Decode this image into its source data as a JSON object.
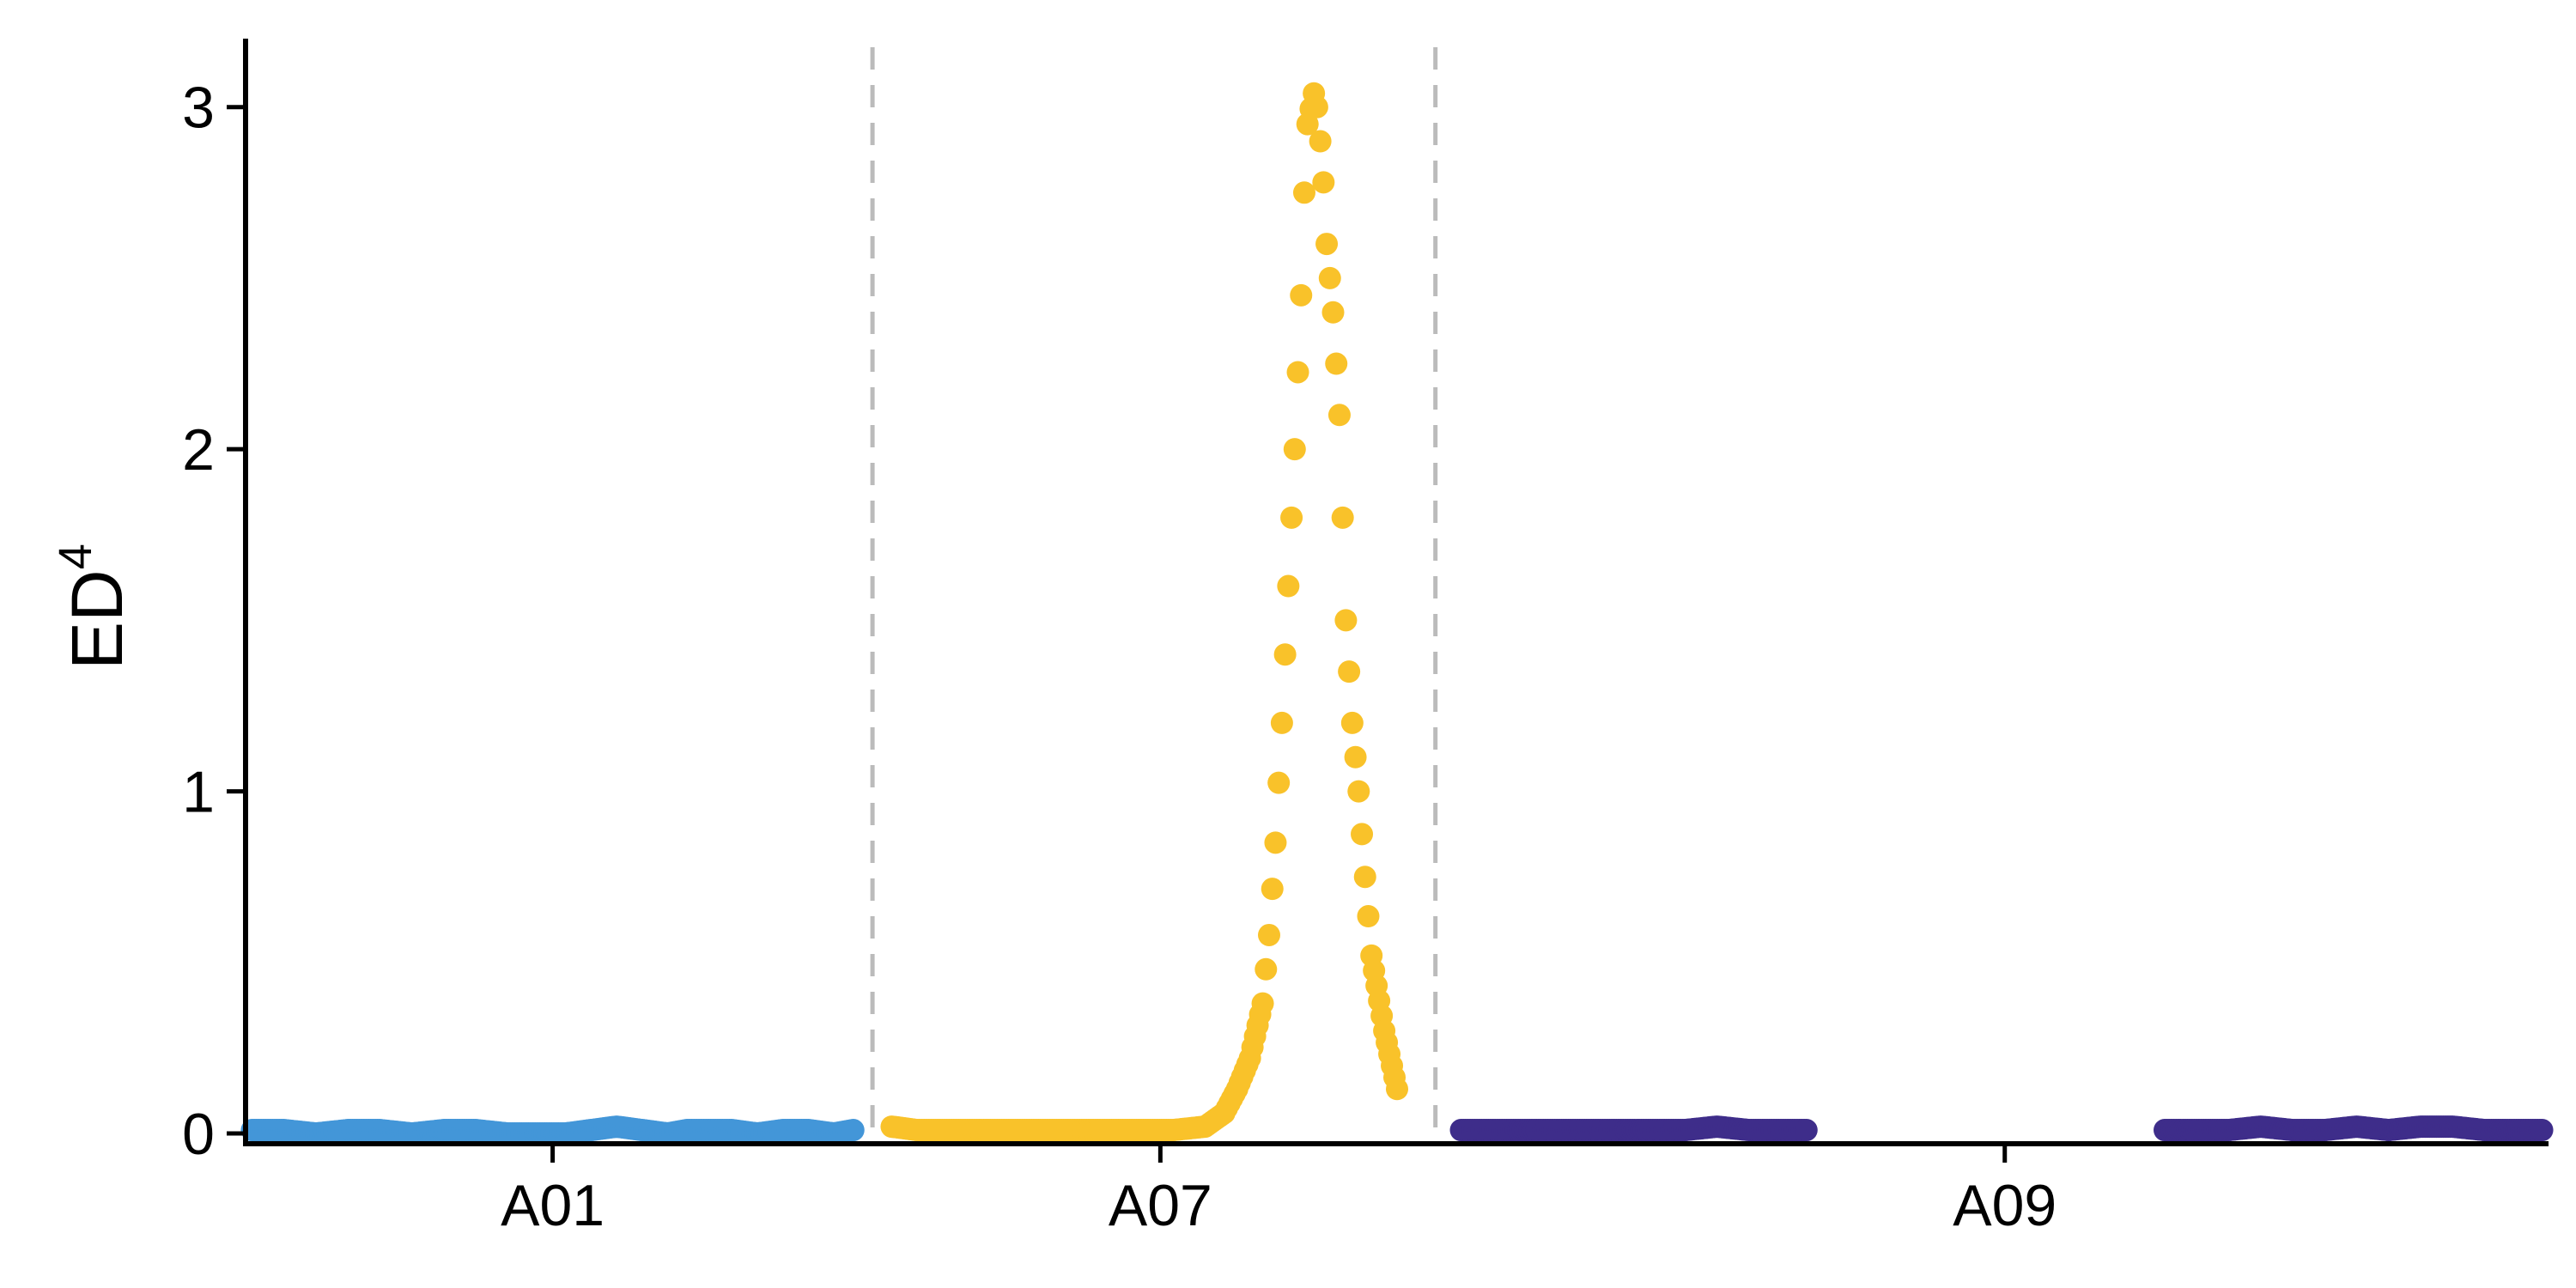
{
  "chart_data": {
    "type": "scatter",
    "title": "",
    "xlabel": "",
    "ylabel": "ED",
    "ylabel_superscript": "4",
    "xlim": [
      0,
      3.6
    ],
    "ylim": [
      -0.03,
      3.2
    ],
    "yticks": [
      0,
      1,
      2,
      3
    ],
    "yticklabels": [
      "0",
      "1",
      "2",
      "3"
    ],
    "xticks": [
      0.48,
      1.43,
      2.75
    ],
    "xticklabels": [
      "A01",
      "A07",
      "A09"
    ],
    "chromosome_boundaries": [
      0.98,
      1.86
    ],
    "grid": false,
    "legend": "none",
    "colors": {
      "A01": "#4396d8",
      "A07": "#f9c22a",
      "A09": "#3e2d8a",
      "boundary": "#bbbbbb",
      "axis": "#000000"
    },
    "series": [
      {
        "chromosome": "A01",
        "x": [
          0.01,
          0.06,
          0.11,
          0.16,
          0.21,
          0.26,
          0.31,
          0.36,
          0.41,
          0.46,
          0.5,
          0.54,
          0.58,
          0.62,
          0.66,
          0.69,
          0.72,
          0.76,
          0.8,
          0.84,
          0.88,
          0.92,
          0.95
        ],
        "y": [
          0.01,
          0.01,
          0.0,
          0.01,
          0.01,
          0.0,
          0.01,
          0.01,
          0.0,
          0.0,
          0.0,
          0.01,
          0.02,
          0.01,
          0.0,
          0.01,
          0.01,
          0.01,
          0.0,
          0.01,
          0.01,
          0.0,
          0.01
        ]
      },
      {
        "chromosome": "A07",
        "x": [
          1.01,
          1.05,
          1.1,
          1.15,
          1.2,
          1.25,
          1.3,
          1.35,
          1.4,
          1.45,
          1.5,
          1.53,
          1.55,
          1.57,
          1.59,
          1.6,
          1.61,
          1.62,
          1.63,
          1.64,
          1.65,
          1.655,
          1.66,
          1.67,
          1.675,
          1.68,
          1.685,
          1.69,
          1.7,
          1.71,
          1.715,
          1.72,
          1.73,
          1.74,
          1.75,
          1.76,
          1.78,
          1.8
        ],
        "y": [
          0.02,
          0.01,
          0.01,
          0.01,
          0.01,
          0.01,
          0.01,
          0.01,
          0.01,
          0.01,
          0.02,
          0.06,
          0.13,
          0.22,
          0.38,
          0.58,
          0.85,
          1.2,
          1.6,
          2.0,
          2.45,
          2.75,
          2.95,
          3.04,
          3.0,
          2.9,
          2.78,
          2.6,
          2.4,
          2.1,
          1.8,
          1.5,
          1.2,
          1.0,
          0.75,
          0.52,
          0.3,
          0.13
        ]
      },
      {
        "chromosome": "A09",
        "x": [
          1.9,
          1.95,
          2.0,
          2.05,
          2.1,
          2.15,
          2.2,
          2.25,
          2.3,
          2.35,
          2.4,
          2.44,
          3.0,
          3.05,
          3.1,
          3.15,
          3.2,
          3.25,
          3.3,
          3.35,
          3.4,
          3.45,
          3.5,
          3.55,
          3.59
        ],
        "y": [
          0.01,
          0.01,
          0.01,
          0.01,
          0.01,
          0.01,
          0.01,
          0.01,
          0.02,
          0.01,
          0.01,
          0.01,
          0.01,
          0.01,
          0.01,
          0.02,
          0.01,
          0.01,
          0.02,
          0.01,
          0.02,
          0.02,
          0.01,
          0.01,
          0.01
        ]
      }
    ]
  }
}
